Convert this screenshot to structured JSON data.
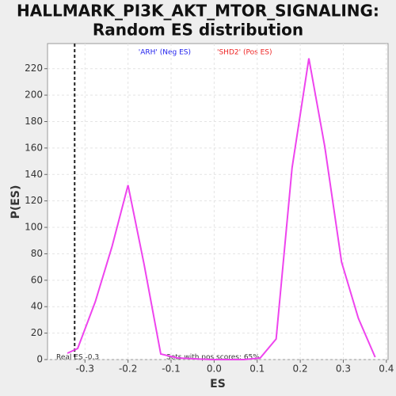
{
  "chart_data": {
    "type": "line",
    "title": "HALLMARK_PI3K_AKT_MTOR_SIGNALING:",
    "subtitle": "Random ES distribution",
    "xlabel": "ES",
    "ylabel": "P(ES)",
    "x": [
      -0.341,
      -0.317,
      -0.276,
      -0.237,
      -0.2,
      -0.163,
      -0.124,
      -0.085,
      -0.046,
      -0.007,
      0.031,
      0.069,
      0.107,
      0.144,
      0.181,
      0.22,
      0.257,
      0.296,
      0.335,
      0.374
    ],
    "series": [
      {
        "name": "P(ES)",
        "color": "#ee44ee",
        "values": [
          4.8,
          8.4,
          43.8,
          85.7,
          131.9,
          72.5,
          4.2,
          1.2,
          0.6,
          0,
          0,
          0,
          1.2,
          15.6,
          145,
          227.8,
          161,
          73.7,
          31.2,
          1.8
        ]
      }
    ],
    "xlim": [
      -0.387,
      0.404
    ],
    "ylim": [
      0,
      239
    ],
    "xticks": [
      -0.3,
      -0.2,
      -0.1,
      {
        "value": 0,
        "label": "0.0"
      },
      0.1,
      0.2,
      0.3,
      0.4
    ],
    "yticks": [
      0,
      20,
      40,
      60,
      80,
      100,
      120,
      140,
      160,
      180,
      200,
      220
    ],
    "grid": true,
    "real_es_line": -0.324,
    "annotations": [
      "Real ES -0.3",
      "Sets with pos scores: 65%"
    ],
    "legend_neg": "'ARH' (Neg ES)",
    "legend_pos": "'SHD2' (Pos ES)"
  }
}
